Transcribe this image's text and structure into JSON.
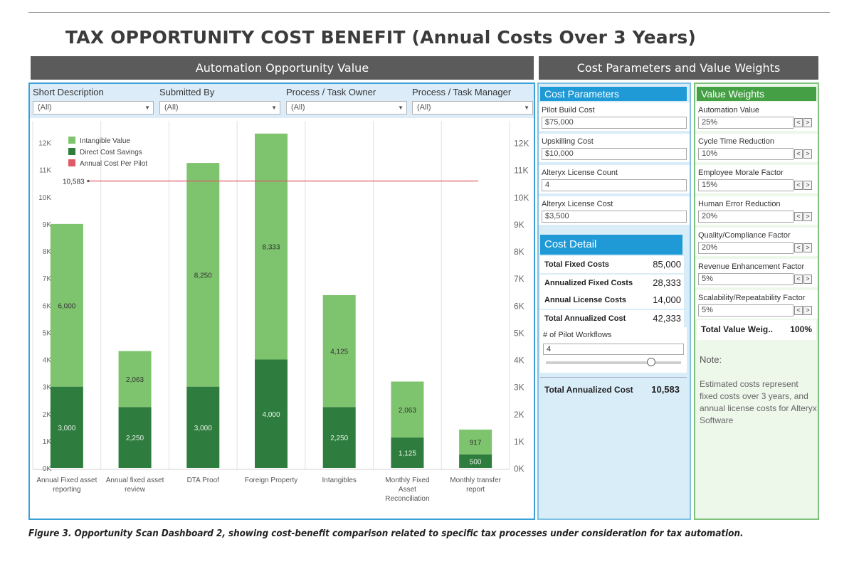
{
  "page_title": "TAX OPPORTUNITY COST BENEFIT (Annual Costs Over 3 Years)",
  "left_header": "Automation Opportunity Value",
  "right_header": "Cost Parameters and Value Weights",
  "filters": [
    {
      "label": "Short Description",
      "value": "(All)"
    },
    {
      "label": "Submitted By",
      "value": "(All)"
    },
    {
      "label": "Process / Task Owner",
      "value": "(All)"
    },
    {
      "label": "Process / Task Manager",
      "value": "(All)"
    }
  ],
  "cost_parameters": {
    "title": "Cost Parameters",
    "items": [
      {
        "label": "Pilot Build Cost",
        "value": "$75,000"
      },
      {
        "label": "Upskilling Cost",
        "value": "$10,000"
      },
      {
        "label": "Alteryx License Count",
        "value": "4"
      },
      {
        "label": "Alteryx License Cost",
        "value": "$3,500"
      }
    ]
  },
  "cost_detail": {
    "title": "Cost Detail",
    "rows": [
      {
        "label": "Total Fixed Costs",
        "value": "85,000"
      },
      {
        "label": "Annualized Fixed Costs",
        "value": "28,333"
      },
      {
        "label": "Annual License Costs",
        "value": "14,000"
      },
      {
        "label": "Total Annualized Cost",
        "value": "42,333"
      }
    ],
    "pilot_label": "# of Pilot Workflows",
    "pilot_value": "4",
    "pilot_slider_level": 0.78,
    "total_label": "Total Annualized Cost",
    "total_value": "10,583"
  },
  "value_weights": {
    "title": "Value Weights",
    "items": [
      {
        "label": "Automation Value",
        "value": "25%"
      },
      {
        "label": "Cycle Time Reduction",
        "value": "10%"
      },
      {
        "label": "Employee Morale Factor",
        "value": "15%"
      },
      {
        "label": "Human Error Reduction",
        "value": "20%"
      },
      {
        "label": "Quality/Compliance Factor",
        "value": "20%"
      },
      {
        "label": "Revenue Enhancement Factor",
        "value": "5%"
      },
      {
        "label": "Scalability/Repeatability Factor",
        "value": "5%"
      }
    ],
    "stepper_prev": "<",
    "stepper_next": ">",
    "total_label": "Total Value Weig..",
    "total_value": "100%",
    "note_title": "Note:",
    "note_text": "Estimated costs represent fixed costs over 3 years, and annual license costs for Alteryx Software"
  },
  "caption": "Figure 3. Opportunity Scan Dashboard 2, showing cost-benefit comparison related to specific tax processes under consideration for tax automation.",
  "colors": {
    "intangible": "#7ec46e",
    "direct": "#2e7d3e",
    "pilot_line": "#e05a66"
  },
  "chart_data": {
    "type": "bar",
    "stacked": true,
    "categories": [
      "Annual Fixed asset reporting",
      "Annual fixed asset review",
      "DTA Proof",
      "Foreign Property",
      "Intangibles",
      "Monthly Fixed Asset Reconciliation",
      "Monthly transfer report"
    ],
    "series": [
      {
        "name": "Direct Cost Savings",
        "values": [
          3000,
          2250,
          3000,
          4000,
          2250,
          1125,
          500
        ],
        "labels": [
          "3,000",
          "2,250",
          "3,000",
          "4,000",
          "2,250",
          "1,125",
          "500"
        ]
      },
      {
        "name": "Intangible Value",
        "values": [
          6000,
          2063,
          8250,
          8333,
          4125,
          2063,
          917
        ],
        "labels": [
          "6,000",
          "2,063",
          "8,250",
          "8,333",
          "4,125",
          "2,063",
          "917"
        ]
      }
    ],
    "reference_line": {
      "name": "Annual Cost Per Pilot",
      "value": 10583,
      "label": "10,583"
    },
    "ylim": [
      0,
      12800
    ],
    "yticks": [
      0,
      1000,
      2000,
      3000,
      4000,
      5000,
      6000,
      7000,
      8000,
      9000,
      10000,
      11000,
      12000
    ],
    "ytick_labels": [
      "0K",
      "1K",
      "2K",
      "3K",
      "4K",
      "5K",
      "6K",
      "7K",
      "8K",
      "9K",
      "10K",
      "11K",
      "12K"
    ],
    "legend": [
      "Intangible Value",
      "Direct Cost Savings",
      "Annual Cost Per Pilot"
    ],
    "legend_position": "top-left",
    "grid": false
  }
}
